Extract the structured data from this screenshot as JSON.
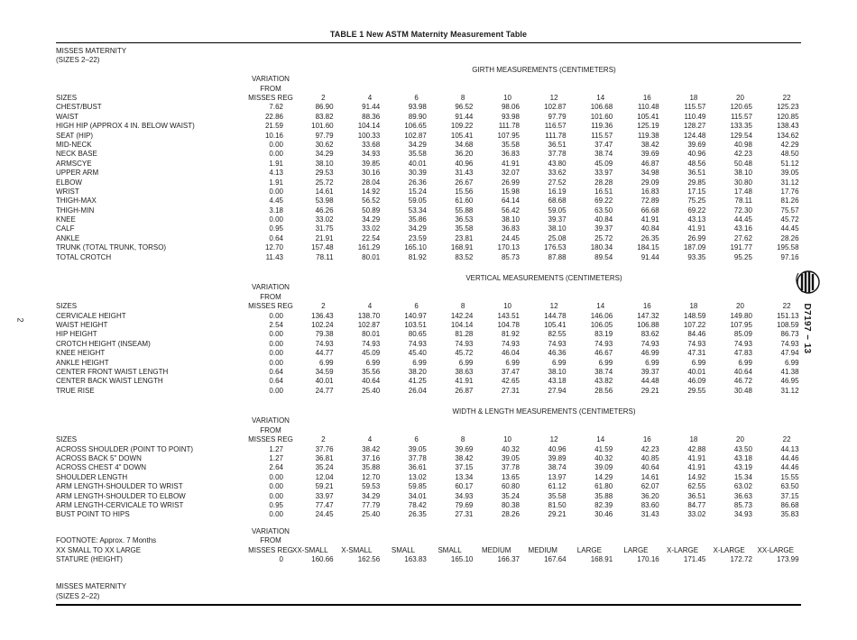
{
  "page": {
    "title": "TABLE 1 New ASTM Maternity Measurement Table",
    "page_number": "2",
    "doc_ref": "D7197 − 13",
    "category_label": "MISSES MATERNITY",
    "category_sublabel": "(SIZES 2–22)"
  },
  "columns": {
    "sizes_label": "SIZES",
    "variation_header": [
      "VARIATION",
      "FROM"
    ],
    "variation_base": "MISSES REG",
    "sizes": [
      "2",
      "4",
      "6",
      "8",
      "10",
      "12",
      "14",
      "16",
      "18",
      "20",
      "22"
    ]
  },
  "sections": [
    {
      "heading": "GIRTH MEASUREMENTS (CENTIMETERS)",
      "rows": [
        {
          "label": "CHEST/BUST",
          "variation": "7.62",
          "values": [
            "86.90",
            "91.44",
            "93.98",
            "96.52",
            "98.06",
            "102.87",
            "106.68",
            "110.48",
            "115.57",
            "120.65",
            "125.23"
          ]
        },
        {
          "label": "WAIST",
          "variation": "22.86",
          "values": [
            "83.82",
            "88.36",
            "89.90",
            "91.44",
            "93.98",
            "97.79",
            "101.60",
            "105.41",
            "110.49",
            "115.57",
            "120.85"
          ]
        },
        {
          "label": "HIGH HIP (APPROX 4 IN. BELOW WAIST)",
          "variation": "21.59",
          "values": [
            "101.60",
            "104.14",
            "106.65",
            "109.22",
            "111.78",
            "116.57",
            "119.36",
            "125.19",
            "128.27",
            "133.35",
            "138.43"
          ]
        },
        {
          "label": "SEAT (HIP)",
          "variation": "10.16",
          "values": [
            "97.79",
            "100.33",
            "102.87",
            "105.41",
            "107.95",
            "111.78",
            "115.57",
            "119.38",
            "124.48",
            "129.54",
            "134.62"
          ]
        },
        {
          "label": "MID-NECK",
          "variation": "0.00",
          "values": [
            "30.62",
            "33.68",
            "34.29",
            "34.68",
            "35.58",
            "36.51",
            "37.47",
            "38.42",
            "39.69",
            "40.98",
            "42.29"
          ]
        },
        {
          "label": "NECK BASE",
          "variation": "0.00",
          "values": [
            "34.29",
            "34.93",
            "35.58",
            "36.20",
            "36.83",
            "37.78",
            "38.74",
            "39.69",
            "40.96",
            "42.23",
            "48.50"
          ]
        },
        {
          "label": "ARMSCYE",
          "variation": "1.91",
          "values": [
            "38.10",
            "39.85",
            "40.01",
            "40.96",
            "41.91",
            "43.80",
            "45.09",
            "46.87",
            "48.56",
            "50.48",
            "51.12"
          ]
        },
        {
          "label": "UPPER ARM",
          "variation": "4.13",
          "values": [
            "29.53",
            "30.16",
            "30.39",
            "31.43",
            "32.07",
            "33.62",
            "33.97",
            "34.98",
            "36.51",
            "38.10",
            "39.05"
          ]
        },
        {
          "label": "ELBOW",
          "variation": "1.91",
          "values": [
            "25.72",
            "28.04",
            "26.36",
            "26.67",
            "26.99",
            "27.52",
            "28.28",
            "29.09",
            "29.85",
            "30.80",
            "31.12"
          ]
        },
        {
          "label": "WRIST",
          "variation": "0.00",
          "values": [
            "14.61",
            "14.92",
            "15.24",
            "15.56",
            "15.98",
            "16.19",
            "16.51",
            "16.83",
            "17.15",
            "17.48",
            "17.76"
          ]
        },
        {
          "label": "THIGH-MAX",
          "variation": "4.45",
          "values": [
            "53.98",
            "56.52",
            "59.05",
            "61.60",
            "64.14",
            "68.68",
            "69.22",
            "72.89",
            "75.25",
            "78.11",
            "81.26"
          ]
        },
        {
          "label": "THIGH-MIN",
          "variation": "3.18",
          "values": [
            "46.26",
            "50.89",
            "53.34",
            "55.88",
            "56.42",
            "59.05",
            "63.50",
            "66.68",
            "69.22",
            "72.30",
            "75.57"
          ]
        },
        {
          "label": "KNEE",
          "variation": "0.00",
          "values": [
            "33.02",
            "34.29",
            "35.86",
            "36.53",
            "38.10",
            "39.37",
            "40.84",
            "41.91",
            "43.13",
            "44.45",
            "45.72"
          ]
        },
        {
          "label": "CALF",
          "variation": "0.95",
          "values": [
            "31.75",
            "33.02",
            "34.29",
            "35.58",
            "36.83",
            "38.10",
            "39.37",
            "40.84",
            "41.91",
            "43.16",
            "44.45"
          ]
        },
        {
          "label": "ANKLE",
          "variation": "0.64",
          "values": [
            "21.91",
            "22.54",
            "23.59",
            "23.81",
            "24.45",
            "25.08",
            "25.72",
            "26.35",
            "26.99",
            "27.62",
            "28.26"
          ]
        },
        {
          "label": "TRUNK (TOTAL TRUNK, TORSO)",
          "variation": "12.70",
          "values": [
            "157.48",
            "161.29",
            "165.10",
            "168.91",
            "170.13",
            "176.53",
            "180.34",
            "184.15",
            "187.09",
            "191.77",
            "195.58"
          ]
        },
        {
          "label": "TOTAL CROTCH",
          "variation": "11.43",
          "values": [
            "78.11",
            "80.01",
            "81.92",
            "83.52",
            "85.73",
            "87.88",
            "89.54",
            "91.44",
            "93.35",
            "95.25",
            "97.16"
          ]
        }
      ]
    },
    {
      "heading": "VERTICAL MEASUREMENTS (CENTIMETERS)",
      "rows": [
        {
          "label": "CERVICALE HEIGHT",
          "variation": "0.00",
          "values": [
            "136.43",
            "138.70",
            "140.97",
            "142.24",
            "143.51",
            "144.78",
            "146.06",
            "147.32",
            "148.59",
            "149.80",
            "151.13"
          ]
        },
        {
          "label": "WAIST HEIGHT",
          "variation": "2.54",
          "values": [
            "102.24",
            "102.87",
            "103.51",
            "104.14",
            "104.78",
            "105.41",
            "106.05",
            "106.88",
            "107.22",
            "107.95",
            "108.59"
          ]
        },
        {
          "label": "HIP HEIGHT",
          "variation": "0.00",
          "values": [
            "79.38",
            "80.01",
            "80.65",
            "81.28",
            "81.92",
            "82.55",
            "83.19",
            "83.62",
            "84.46",
            "85.09",
            "86.73"
          ]
        },
        {
          "label": "CROTCH HEIGHT (INSEAM)",
          "variation": "0.00",
          "values": [
            "74.93",
            "74.93",
            "74.93",
            "74.93",
            "74.93",
            "74.93",
            "74.93",
            "74.93",
            "74.93",
            "74.93",
            "74.93"
          ]
        },
        {
          "label": "KNEE HEIGHT",
          "variation": "0.00",
          "values": [
            "44.77",
            "45.09",
            "45.40",
            "45.72",
            "46.04",
            "46.36",
            "46.67",
            "46.99",
            "47.31",
            "47.83",
            "47.94"
          ]
        },
        {
          "label": "ANKLE HEIGHT",
          "variation": "0.00",
          "values": [
            "6.99",
            "6.99",
            "6.99",
            "6.99",
            "6.99",
            "6.99",
            "6.99",
            "6.99",
            "6.99",
            "6.99",
            "6.99"
          ]
        },
        {
          "label": "CENTER FRONT WAIST LENGTH",
          "variation": "0.64",
          "values": [
            "34.59",
            "35.56",
            "38.20",
            "38.63",
            "37.47",
            "38.10",
            "38.74",
            "39.37",
            "40.01",
            "40.64",
            "41.38"
          ]
        },
        {
          "label": "CENTER BACK WAIST LENGTH",
          "variation": "0.64",
          "values": [
            "40.01",
            "40.64",
            "41.25",
            "41.91",
            "42.65",
            "43.18",
            "43.82",
            "44.48",
            "46.09",
            "46.72",
            "46.95"
          ]
        },
        {
          "label": "TRUE RISE",
          "variation": "0.00",
          "values": [
            "24.77",
            "25.40",
            "26.04",
            "26.87",
            "27.31",
            "27.94",
            "28.56",
            "29.21",
            "29.55",
            "30.48",
            "31.12"
          ]
        }
      ]
    },
    {
      "heading": "WIDTH & LENGTH MEASUREMENTS (CENTIMETERS)",
      "rows": [
        {
          "label": "ACROSS SHOULDER (POINT TO POINT)",
          "variation": "1.27",
          "values": [
            "37.76",
            "38.42",
            "39.05",
            "39.69",
            "40.32",
            "40.96",
            "41.59",
            "42.23",
            "42.88",
            "43.50",
            "44.13"
          ]
        },
        {
          "label": "ACROSS BACK 5\" DOWN",
          "variation": "1.27",
          "values": [
            "36.81",
            "37.16",
            "37.78",
            "38.42",
            "39.05",
            "39.89",
            "40.32",
            "40.85",
            "41.91",
            "43.18",
            "44.46"
          ]
        },
        {
          "label": "ACROSS CHEST 4\" DOWN",
          "variation": "2.64",
          "values": [
            "35.24",
            "35.88",
            "36.61",
            "37.15",
            "37.78",
            "38.74",
            "39.09",
            "40.64",
            "41.91",
            "43.19",
            "44.46"
          ]
        },
        {
          "label": "SHOULDER LENGTH",
          "variation": "0.00",
          "values": [
            "12.04",
            "12.70",
            "13.02",
            "13.34",
            "13.65",
            "13.97",
            "14.29",
            "14.61",
            "14.92",
            "15.34",
            "15.55"
          ]
        },
        {
          "label": "ARM LENGTH-SHOULDER TO WRIST",
          "variation": "0.00",
          "values": [
            "59.21",
            "59.53",
            "59.85",
            "60.17",
            "60.80",
            "61.12",
            "61.80",
            "62.07",
            "62.55",
            "63.02",
            "63.50"
          ]
        },
        {
          "label": "ARM LENGTH-SHOULDER TO ELBOW",
          "variation": "0.00",
          "values": [
            "33.97",
            "34.29",
            "34.01",
            "34.93",
            "35.24",
            "35.58",
            "35.88",
            "36.20",
            "36.51",
            "36.63",
            "37.15"
          ]
        },
        {
          "label": "ARM LENGTH-CERVICALE TO WRIST",
          "variation": "0.95",
          "values": [
            "77.47",
            "77.79",
            "78.42",
            "79.69",
            "80.38",
            "81.50",
            "82.39",
            "83.60",
            "84.77",
            "85.73",
            "86.68"
          ]
        },
        {
          "label": "BUST POINT TO HIPS",
          "variation": "0.00",
          "values": [
            "24.45",
            "25.40",
            "26.35",
            "27.31",
            "28.26",
            "29.21",
            "30.46",
            "31.43",
            "33.02",
            "34.93",
            "35.83"
          ]
        }
      ]
    }
  ],
  "footnote": {
    "note": "FOOTNOTE: Approx. 7 Months",
    "range_label": "XX SMALL TO XX LARGE",
    "variation_header": [
      "VARIATION",
      "FROM"
    ],
    "variation_base": "MISSES REG",
    "size_names": [
      "XX-SMALL",
      "X-SMALL",
      "SMALL",
      "SMALL",
      "MEDIUM",
      "MEDIUM",
      "LARGE",
      "LARGE",
      "X-LARGE",
      "X-LARGE",
      "XX-LARGE"
    ],
    "stature": {
      "label": "STATURE (HEIGHT)",
      "variation": "0",
      "values": [
        "160.66",
        "162.56",
        "163.83",
        "165.10",
        "166.37",
        "167.64",
        "168.91",
        "170.16",
        "171.45",
        "172.72",
        "173.99"
      ]
    }
  }
}
